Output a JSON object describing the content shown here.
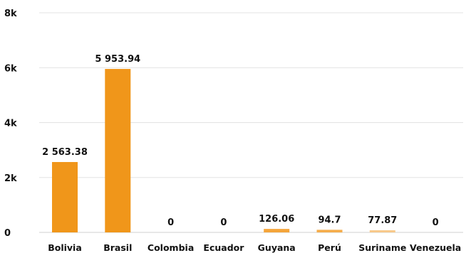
{
  "chart_data": {
    "type": "bar",
    "categories": [
      "Bolivia",
      "Brasil",
      "Colombia",
      "Ecuador",
      "Guyana",
      "Perú",
      "Suriname",
      "Venezuela"
    ],
    "values": [
      2563.38,
      5953.94,
      0,
      0,
      126.06,
      94.7,
      77.87,
      0
    ],
    "data_labels": [
      "2 563.38",
      "5 953.94",
      "0",
      "0",
      "126.06",
      "94.7",
      "77.87",
      "0"
    ],
    "bar_colors": [
      "#f0961a",
      "#f0961a",
      "#f0961a",
      "#f0961a",
      "#f4a53a",
      "#f5ad4c",
      "#f8c98b",
      "#f0961a"
    ],
    "y_ticks": [
      0,
      2000,
      4000,
      6000,
      8000
    ],
    "y_tick_labels": [
      "0",
      "2k",
      "4k",
      "6k",
      "8k"
    ],
    "ylim": [
      0,
      8000
    ],
    "title": "",
    "xlabel": "",
    "ylabel": "",
    "grid": true,
    "legend": "none"
  }
}
